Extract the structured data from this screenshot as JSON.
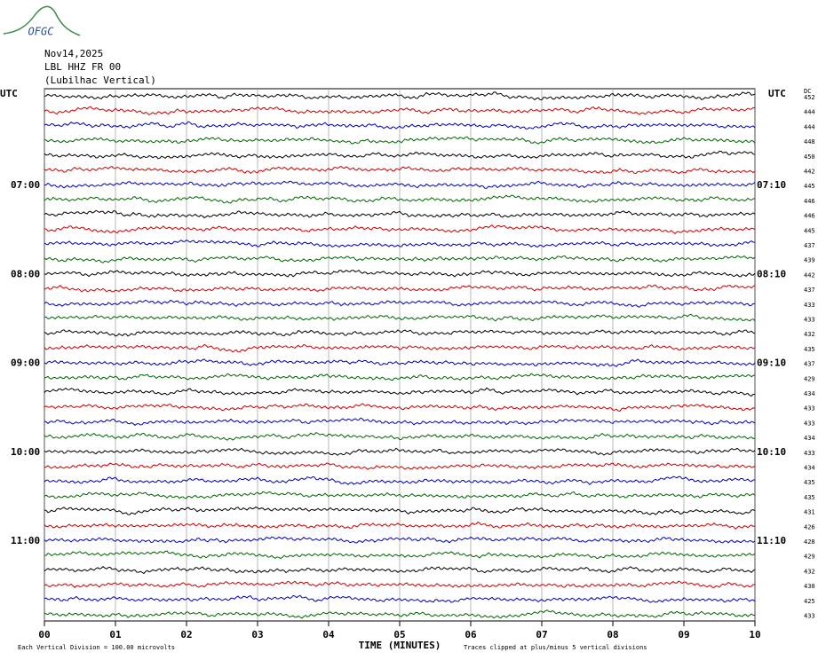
{
  "logo": "OFGC",
  "header": {
    "date": "Nov14,2025",
    "station": "LBL HHZ FR 00",
    "location": "(Lubilhac Vertical)"
  },
  "left_labels": {
    "timezone": "UTC",
    "hours": [
      "07:00",
      "08:00",
      "09:00",
      "10:00",
      "11:00"
    ]
  },
  "right_labels": {
    "timezone": "UTC",
    "hours": [
      "07:10",
      "08:10",
      "09:10",
      "10:10",
      "11:10"
    ]
  },
  "dc_header": "DC",
  "dc_values": [
    452,
    444,
    444,
    448,
    450,
    442,
    445,
    446,
    446,
    445,
    437,
    439,
    442,
    437,
    433,
    433,
    432,
    435,
    437,
    429,
    434,
    433,
    433,
    434,
    433,
    434,
    435,
    435,
    431,
    426,
    428,
    429,
    432,
    430,
    425,
    433
  ],
  "x_ticks": [
    "00",
    "01",
    "02",
    "03",
    "04",
    "05",
    "06",
    "07",
    "08",
    "09",
    "10"
  ],
  "x_label": "TIME (MINUTES)",
  "footer": {
    "division": "Each Vertical Division =  100.00 microvolts",
    "clipping": "Traces clipped at plus/minus 5 vertical divisions"
  },
  "trace_colors": [
    "#000000",
    "#cc0000",
    "#0000bb",
    "#006600"
  ]
}
